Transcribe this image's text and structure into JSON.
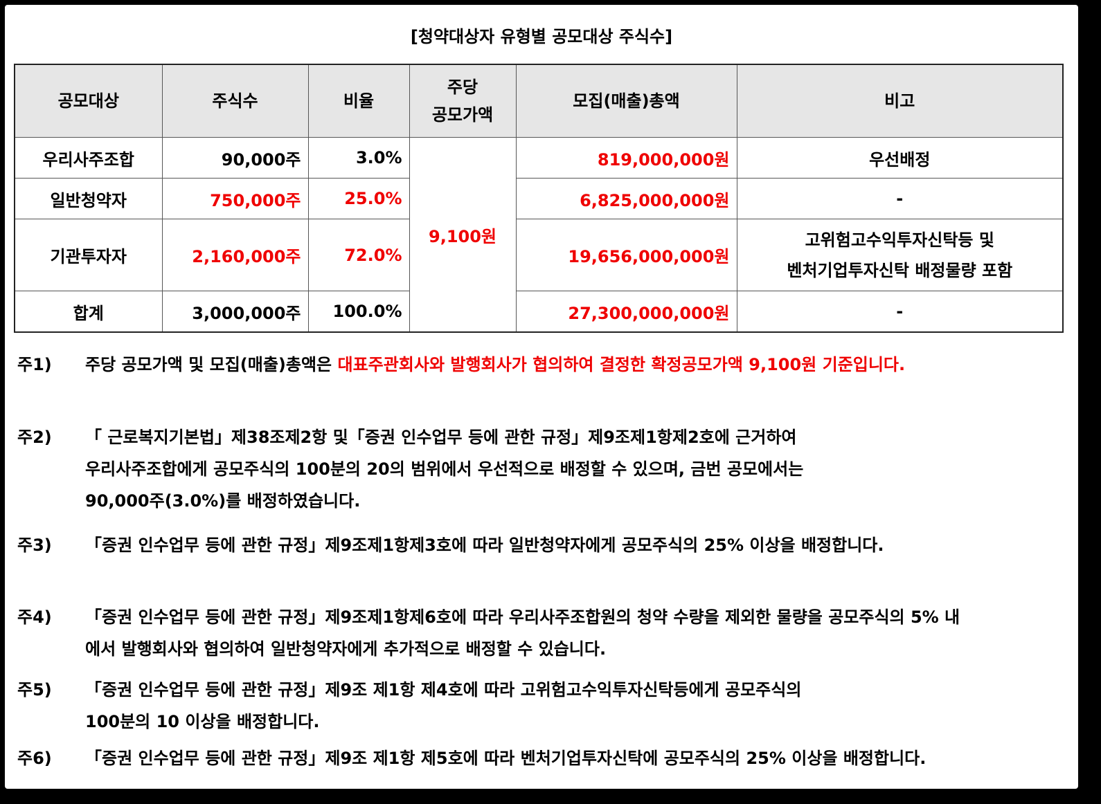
{
  "title": "[청약대상자 유형별 공모대상 주식수]",
  "table": {
    "headers": {
      "target": "공모대상",
      "shares": "주식수",
      "ratio": "비율",
      "price_line1": "주당",
      "price_line2": "공모가액",
      "total": "모집(매출)총액",
      "remarks": "비고"
    },
    "rows": [
      {
        "target": "우리사주조합",
        "shares": "90,000주",
        "ratio": "3.0%",
        "total": "819,000,000원",
        "remarks": "우선배정"
      },
      {
        "target": "일반청약자",
        "shares": "750,000주",
        "ratio": "25.0%",
        "total": "6,825,000,000원",
        "remarks": "-"
      },
      {
        "target": "기관투자자",
        "shares": "2,160,000주",
        "ratio": "72.0%",
        "total": "19,656,000,000원",
        "remarks_line1": "고위험고수익투자신탁등 및",
        "remarks_line2": "벤처기업투자신탁 배정물량 포함"
      },
      {
        "target": "합계",
        "shares": "3,000,000주",
        "ratio": "100.0%",
        "total": "27,300,000,000원",
        "remarks": "-"
      }
    ],
    "price": "9,100원"
  },
  "notes": [
    {
      "label": "주1)",
      "text_black": "주당 공모가액 및 모집(매출)총액은 ",
      "text_red": "대표주관회사와 발행회사가 협의하여 결정한 확정공모가액 9,100원 기준입니다."
    },
    {
      "label": "주2)",
      "lines": [
        "「 근로복지기본법」제38조제2항 및「증권 인수업무 등에 관한 규정」제9조제1항제2호에 근거하여",
        "우리사주조합에게 공모주식의 100분의 20의 범위에서 우선적으로 배정할 수 있으며, 금번 공모에서는",
        "90,000주(3.0%)를 배정하였습니다."
      ]
    },
    {
      "label": "주3)",
      "lines": [
        "「증권 인수업무 등에 관한 규정」제9조제1항제3호에 따라 일반청약자에게 공모주식의 25% 이상을 배정합니다."
      ]
    },
    {
      "label": "주4)",
      "lines": [
        "「증권 인수업무 등에 관한 규정」제9조제1항제6호에 따라 우리사주조합원의 청약 수량을 제외한 물량을 공모주식의 5% 내",
        "에서 발행회사와 협의하여 일반청약자에게 추가적으로 배정할 수 있습니다."
      ]
    },
    {
      "label": "주5)",
      "lines": [
        "「증권 인수업무 등에 관한 규정」제9조 제1항 제4호에 따라 고위험고수익투자신탁등에게 공모주식의",
        "100분의 10 이상을 배정합니다."
      ]
    },
    {
      "label": "주6)",
      "lines": [
        "「증권 인수업무 등에 관한 규정」제9조 제1항 제5호에 따라 벤처기업투자신탁에 공모주식의 25% 이상을 배정합니다."
      ]
    }
  ],
  "colors": {
    "highlight": "#ef0000",
    "header_bg": "#e6e6e6",
    "frame": "#000000"
  }
}
